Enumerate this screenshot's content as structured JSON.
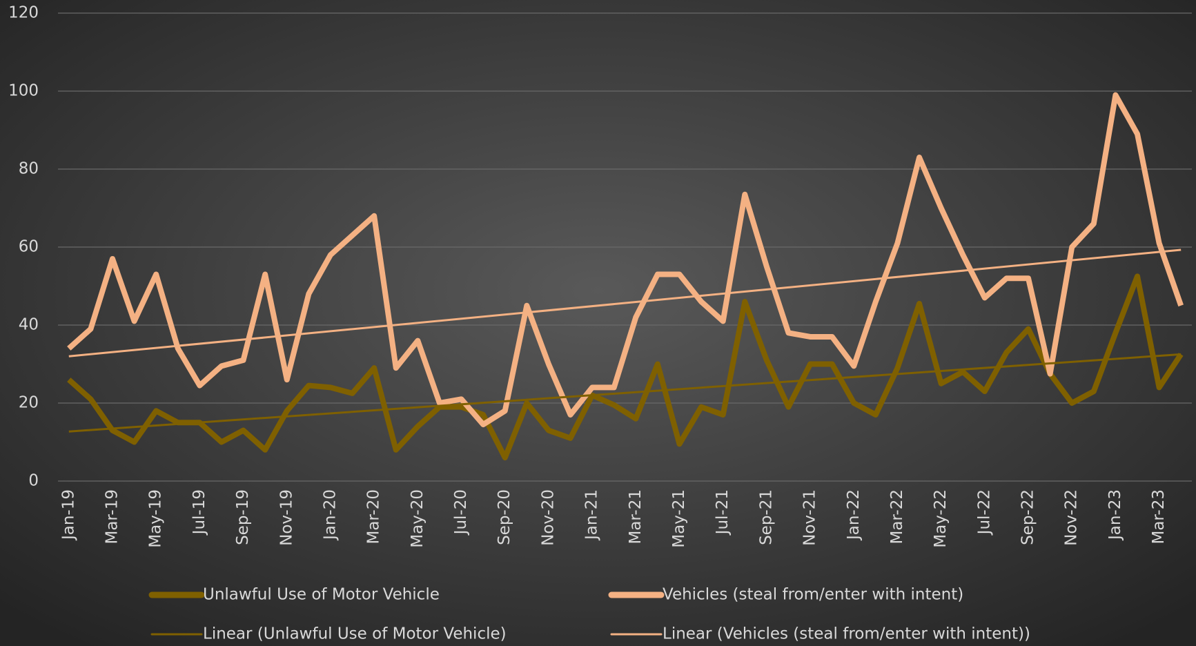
{
  "chart_data": {
    "type": "line",
    "categories": [
      "Jan-19",
      null,
      "Mar-19",
      null,
      "May-19",
      null,
      "Jul-19",
      null,
      "Sep-19",
      null,
      "Nov-19",
      null,
      "Jan-20",
      null,
      "Mar-20",
      null,
      "May-20",
      null,
      "Jul-20",
      null,
      "Sep-20",
      null,
      "Nov-20",
      null,
      "Jan-21",
      null,
      "Mar-21",
      null,
      "May-21",
      null,
      "Jul-21",
      null,
      "Sep-21",
      null,
      "Nov-21",
      null,
      "Jan-22",
      null,
      "Mar-22",
      null,
      "May-22",
      null,
      "Jul-22",
      null,
      "Sep-22",
      null,
      "Nov-22",
      null,
      "Jan-23",
      null,
      "Mar-23",
      null
    ],
    "series": [
      {
        "name": "Unlawful Use of Motor Vehicle",
        "color": "#7f6000",
        "values": [
          26,
          21,
          13,
          10,
          18,
          15,
          15,
          10,
          13,
          8,
          18,
          24.5,
          24,
          22.5,
          29,
          8,
          14,
          19,
          19,
          17,
          6,
          20,
          13,
          11,
          22,
          19.5,
          16,
          30,
          9.5,
          19,
          17,
          46,
          31,
          19,
          30,
          30,
          20,
          17,
          29,
          45.5,
          25,
          28,
          23,
          33,
          39,
          27.5,
          20,
          23,
          38,
          52.5,
          24,
          32.5
        ]
      },
      {
        "name": "Vehicles (steal from/enter with intent)",
        "color": "#f4b183",
        "values": [
          34,
          39,
          57,
          41,
          53,
          34,
          24.5,
          29.5,
          31,
          53,
          26,
          48,
          58,
          63,
          68,
          29,
          36,
          20,
          21,
          14.5,
          18,
          45,
          30,
          17,
          24,
          24,
          42,
          53,
          53,
          46,
          41,
          73.5,
          55,
          38,
          37,
          37,
          29.5,
          46,
          61,
          83,
          70,
          58,
          47,
          52,
          52,
          27.5,
          60,
          66,
          99,
          89,
          61,
          45
        ]
      },
      {
        "name": "Linear (Unlawful Use of Motor Vehicle)",
        "color": "#7f6000",
        "trend": [
          12.7,
          32.5
        ]
      },
      {
        "name": "Linear (Vehicles (steal from/enter with intent))",
        "color": "#f4b183",
        "trend": [
          32,
          59.3
        ]
      }
    ],
    "ylim": [
      0,
      120
    ],
    "yticks": [
      0,
      20,
      40,
      60,
      80,
      100,
      120
    ],
    "grid": true,
    "legend": "bottom"
  }
}
